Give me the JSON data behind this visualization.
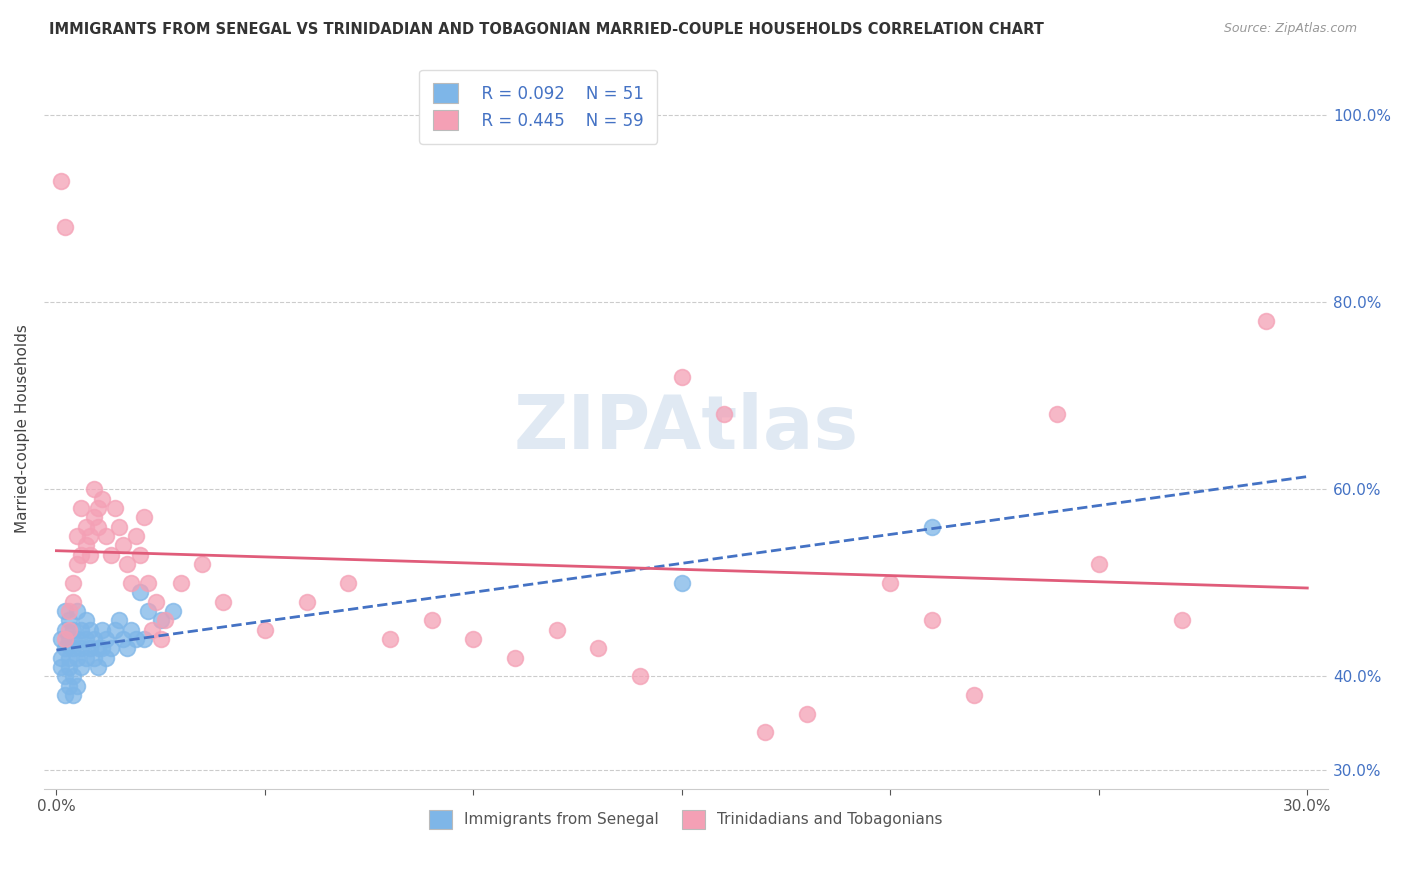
{
  "title": "IMMIGRANTS FROM SENEGAL VS TRINIDADIAN AND TOBAGONIAN MARRIED-COUPLE HOUSEHOLDS CORRELATION CHART",
  "source": "Source: ZipAtlas.com",
  "ylabel": "Married-couple Households",
  "legend_r1": "R = 0.092",
  "legend_n1": "N = 51",
  "legend_r2": "R = 0.445",
  "legend_n2": "N = 59",
  "blue_color": "#7EB6E8",
  "pink_color": "#F4A0B5",
  "blue_line_color": "#4472C4",
  "pink_line_color": "#E05C7A",
  "blue_x": [
    0.001,
    0.001,
    0.001,
    0.002,
    0.002,
    0.002,
    0.002,
    0.002,
    0.003,
    0.003,
    0.003,
    0.003,
    0.003,
    0.004,
    0.004,
    0.004,
    0.004,
    0.005,
    0.005,
    0.005,
    0.005,
    0.006,
    0.006,
    0.006,
    0.007,
    0.007,
    0.007,
    0.008,
    0.008,
    0.009,
    0.009,
    0.01,
    0.01,
    0.011,
    0.011,
    0.012,
    0.012,
    0.013,
    0.014,
    0.015,
    0.016,
    0.017,
    0.018,
    0.019,
    0.02,
    0.021,
    0.022,
    0.025,
    0.15,
    0.21,
    0.028
  ],
  "blue_y": [
    0.42,
    0.44,
    0.41,
    0.45,
    0.43,
    0.47,
    0.4,
    0.38,
    0.46,
    0.44,
    0.42,
    0.39,
    0.41,
    0.45,
    0.43,
    0.4,
    0.38,
    0.47,
    0.44,
    0.42,
    0.39,
    0.45,
    0.43,
    0.41,
    0.46,
    0.44,
    0.42,
    0.45,
    0.43,
    0.44,
    0.42,
    0.43,
    0.41,
    0.45,
    0.43,
    0.44,
    0.42,
    0.43,
    0.45,
    0.46,
    0.44,
    0.43,
    0.45,
    0.44,
    0.49,
    0.44,
    0.47,
    0.46,
    0.5,
    0.56,
    0.47
  ],
  "pink_x": [
    0.001,
    0.002,
    0.002,
    0.003,
    0.003,
    0.004,
    0.004,
    0.005,
    0.005,
    0.006,
    0.006,
    0.007,
    0.007,
    0.008,
    0.008,
    0.009,
    0.009,
    0.01,
    0.01,
    0.011,
    0.012,
    0.013,
    0.014,
    0.015,
    0.016,
    0.017,
    0.018,
    0.019,
    0.02,
    0.021,
    0.022,
    0.023,
    0.024,
    0.025,
    0.026,
    0.03,
    0.035,
    0.04,
    0.05,
    0.06,
    0.07,
    0.08,
    0.09,
    0.1,
    0.11,
    0.12,
    0.13,
    0.14,
    0.15,
    0.16,
    0.17,
    0.18,
    0.2,
    0.21,
    0.22,
    0.24,
    0.25,
    0.27,
    0.29
  ],
  "pink_y": [
    0.93,
    0.88,
    0.44,
    0.47,
    0.45,
    0.5,
    0.48,
    0.55,
    0.52,
    0.58,
    0.53,
    0.54,
    0.56,
    0.55,
    0.53,
    0.6,
    0.57,
    0.56,
    0.58,
    0.59,
    0.55,
    0.53,
    0.58,
    0.56,
    0.54,
    0.52,
    0.5,
    0.55,
    0.53,
    0.57,
    0.5,
    0.45,
    0.48,
    0.44,
    0.46,
    0.5,
    0.52,
    0.48,
    0.45,
    0.48,
    0.5,
    0.44,
    0.46,
    0.44,
    0.42,
    0.45,
    0.43,
    0.4,
    0.72,
    0.68,
    0.34,
    0.36,
    0.5,
    0.46,
    0.38,
    0.68,
    0.52,
    0.46,
    0.78
  ]
}
